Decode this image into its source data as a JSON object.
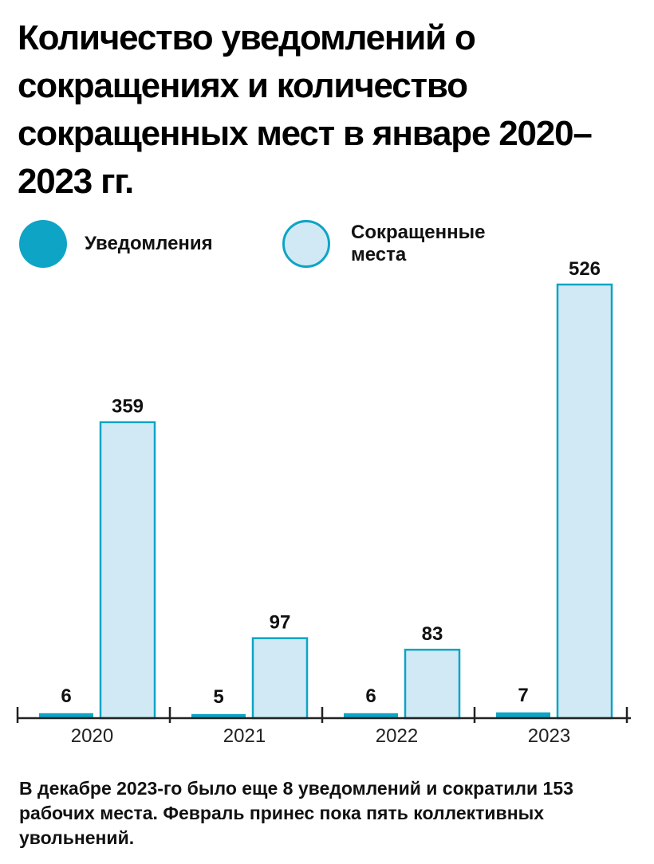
{
  "title": "Количество уведомлений о сокращениях и количество сокращенных мест в январе 2020–2023 гг.",
  "legend": [
    {
      "label": "Уведомления",
      "style": "filled"
    },
    {
      "label": "Сокращенные места",
      "style": "outlined"
    }
  ],
  "colors": {
    "notifications": "#0ea4c6",
    "positions_fill": "#d1e9f5",
    "positions_stroke": "#0ea4c6",
    "axis": "#222222"
  },
  "chart_data": {
    "type": "bar",
    "categories": [
      "2020",
      "2021",
      "2022",
      "2023"
    ],
    "series": [
      {
        "name": "Уведомления",
        "values": [
          6,
          5,
          6,
          7
        ]
      },
      {
        "name": "Сокращенные места",
        "values": [
          359,
          97,
          83,
          526
        ]
      }
    ],
    "ylim": [
      0,
      526
    ],
    "grid": false,
    "legend_position": "top-left"
  },
  "note": "В декабре 2023-го было еще 8 уведомлений и сократили 153 рабочих места. Февраль принес пока пять коллективных увольнений."
}
